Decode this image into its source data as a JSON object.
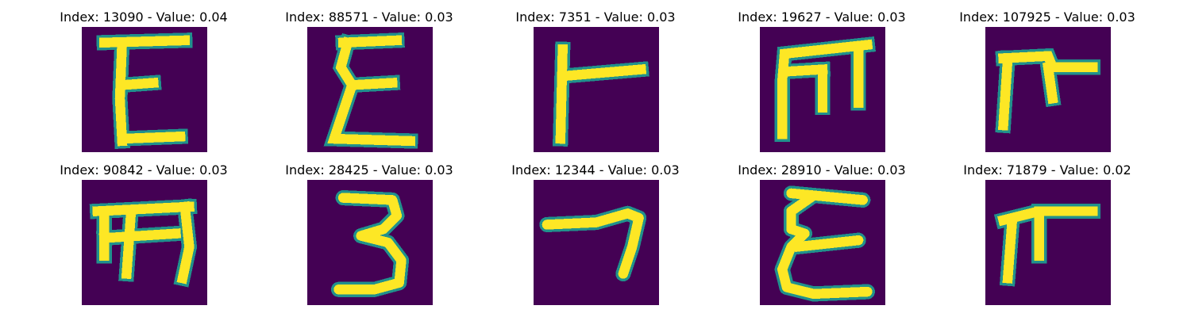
{
  "colors": {
    "background": "#440154",
    "stroke_core": "#fde725",
    "stroke_mid": "#5ec962",
    "stroke_edge": "#21918c"
  },
  "panels": [
    {
      "title": "Index: 13090 - Value: 0.04",
      "glyph": "E-shape"
    },
    {
      "title": "Index: 88571 - Value: 0.03",
      "glyph": "sigma-shape"
    },
    {
      "title": "Index: 7351 - Value: 0.03",
      "glyph": "T-bar-shape"
    },
    {
      "title": "Index: 19627 - Value: 0.03",
      "glyph": "m-shape"
    },
    {
      "title": "Index: 107925 - Value: 0.03",
      "glyph": "pi-shape"
    },
    {
      "title": "Index: 90842 - Value: 0.03",
      "glyph": "m-shape"
    },
    {
      "title": "Index: 28425 - Value: 0.03",
      "glyph": "3-shape"
    },
    {
      "title": "Index: 12344 - Value: 0.03",
      "glyph": "7-shape"
    },
    {
      "title": "Index: 28910 - Value: 0.03",
      "glyph": "epsilon-shape"
    },
    {
      "title": "Index: 71879 - Value: 0.02",
      "glyph": "pi-shape"
    }
  ]
}
